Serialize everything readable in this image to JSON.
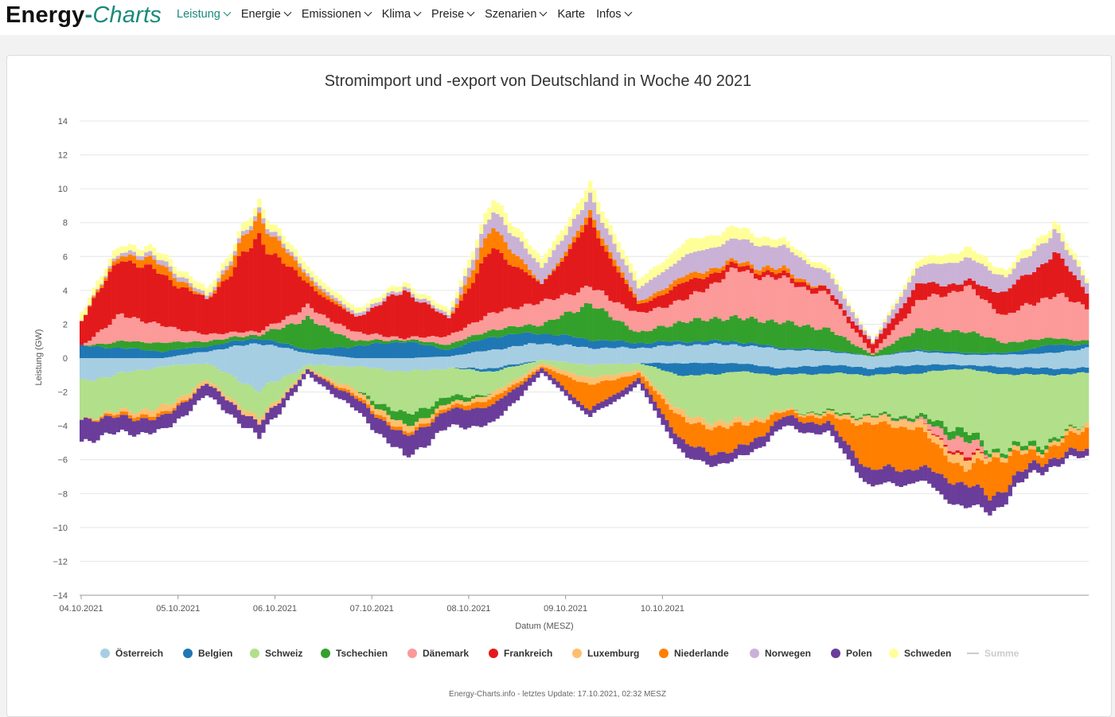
{
  "nav": {
    "brand_a": "Energy",
    "brand_dash": "-",
    "brand_b": "Charts",
    "items": [
      {
        "label": "Leistung",
        "active": true,
        "dropdown": true
      },
      {
        "label": "Energie",
        "active": false,
        "dropdown": true
      },
      {
        "label": "Emissionen",
        "active": false,
        "dropdown": true
      },
      {
        "label": "Klima",
        "active": false,
        "dropdown": true
      },
      {
        "label": "Preise",
        "active": false,
        "dropdown": true
      },
      {
        "label": "Szenarien",
        "active": false,
        "dropdown": true
      },
      {
        "label": "Karte",
        "active": false,
        "dropdown": false
      },
      {
        "label": "Infos",
        "active": false,
        "dropdown": true
      }
    ]
  },
  "footer": "Energy-Charts.info - letztes Update: 17.10.2021, 02:32 MESZ",
  "chart_data": {
    "type": "bar",
    "stacked": true,
    "title": "Stromimport und -export von Deutschland in Woche 40 2021",
    "xlabel": "Datum (MESZ)",
    "ylabel": "Leistung (GW)",
    "ylim": [
      -14,
      14
    ],
    "yticks": [
      14,
      12,
      10,
      8,
      6,
      4,
      2,
      0,
      -2,
      -4,
      -6,
      -8,
      -10,
      -12,
      -14
    ],
    "ytick_labels": [
      "14",
      "12",
      "10",
      "8",
      "6",
      "4",
      "2",
      "0",
      "−2",
      "−4",
      "−6",
      "−8",
      "−10",
      "−12",
      "−14"
    ],
    "xtick_labels": [
      "04.10.2021",
      "05.10.2021",
      "06.10.2021",
      "07.10.2021",
      "08.10.2021",
      "09.10.2021",
      "10.10.2021"
    ],
    "grid": true,
    "legend_position": "bottom",
    "hours_per_day": 24,
    "import_colors": [
      "#a6cee3",
      "#1f78b4",
      "#b2df8a",
      "#33a02c",
      "#fb9a99",
      "#e31a1c",
      "#fdbf6f",
      "#ff7f00",
      "#cab2d6",
      "#6a3d9a",
      "#ffff99"
    ],
    "series": [
      {
        "name": "Österreich",
        "color": "#a6cee3"
      },
      {
        "name": "Belgien",
        "color": "#1f78b4"
      },
      {
        "name": "Schweiz",
        "color": "#b2df8a"
      },
      {
        "name": "Tschechien",
        "color": "#33a02c"
      },
      {
        "name": "Dänemark",
        "color": "#fb9a99"
      },
      {
        "name": "Frankreich",
        "color": "#e31a1c"
      },
      {
        "name": "Luxemburg",
        "color": "#fdbf6f"
      },
      {
        "name": "Niederlande",
        "color": "#ff7f00"
      },
      {
        "name": "Norwegen",
        "color": "#cab2d6"
      },
      {
        "name": "Polen",
        "color": "#6a3d9a"
      },
      {
        "name": "Schweden",
        "color": "#ffff99"
      },
      {
        "name": "Summe",
        "color": "#cccccc",
        "inactive": true
      }
    ],
    "import_keyframes": [
      [
        0,
        [
          0,
          0.7,
          0,
          0,
          0,
          1.6,
          0,
          0,
          0,
          0,
          0.5
        ]
      ],
      [
        10,
        [
          0,
          0.6,
          0,
          0.4,
          1.6,
          3.4,
          0,
          0.3,
          0.2,
          0,
          0.4
        ]
      ],
      [
        20,
        [
          0,
          0.4,
          0,
          0.5,
          1.0,
          3.0,
          0,
          0.6,
          0.3,
          0,
          0.4
        ]
      ],
      [
        31,
        [
          0.4,
          0.3,
          0,
          0.3,
          0.4,
          2.0,
          0,
          0,
          0.2,
          0,
          0.4
        ]
      ],
      [
        44,
        [
          0.9,
          0.3,
          0,
          0.2,
          0.2,
          5.5,
          0,
          1.3,
          0.3,
          0,
          0.5
        ]
      ],
      [
        56,
        [
          0.3,
          0.2,
          0,
          1.8,
          0.7,
          1.3,
          0,
          0.4,
          0.2,
          0,
          0.4
        ]
      ],
      [
        68,
        [
          0,
          0.7,
          0,
          0.3,
          0.5,
          0.9,
          0,
          0,
          0.2,
          0,
          0.3
        ]
      ],
      [
        80,
        [
          0,
          1.0,
          0,
          0.1,
          0.1,
          2.8,
          0,
          0,
          0.2,
          0,
          0.3
        ]
      ],
      [
        91,
        [
          0.1,
          0.4,
          0,
          0.3,
          0.5,
          1.0,
          0,
          0,
          0.2,
          0,
          0.3
        ]
      ],
      [
        102,
        [
          0.5,
          0.8,
          0,
          0.4,
          1.0,
          3.8,
          0,
          1.3,
          1.0,
          0,
          0.7
        ]
      ],
      [
        114,
        [
          0.9,
          0.6,
          0,
          0.5,
          1.3,
          1.0,
          0,
          0,
          1.0,
          0,
          0.5
        ]
      ],
      [
        126,
        [
          0.6,
          0.5,
          0,
          2.1,
          1.0,
          3.8,
          0,
          0.5,
          1.0,
          0,
          0.7
        ]
      ],
      [
        138,
        [
          0.6,
          0.3,
          0,
          0.6,
          1.1,
          0.5,
          0,
          0.2,
          0.8,
          0,
          0.5
        ]
      ],
      [
        150,
        [
          0.8,
          0.2,
          0,
          1.2,
          1.3,
          1.0,
          0,
          0.4,
          1.2,
          0,
          0.8
        ]
      ],
      [
        162,
        [
          0.8,
          0.2,
          0,
          1.4,
          2.8,
          0.3,
          0,
          0.2,
          1.3,
          0,
          0.7
        ]
      ],
      [
        174,
        [
          0.5,
          0.1,
          0,
          1.5,
          2.5,
          0.3,
          0,
          0.3,
          1.3,
          0,
          0.4
        ]
      ],
      [
        185,
        [
          0.4,
          0.1,
          0,
          1.2,
          2.0,
          0.3,
          0,
          0,
          1.0,
          0,
          0.3
        ]
      ],
      [
        196,
        [
          0.1,
          0,
          0,
          0.1,
          0.1,
          0.5,
          0,
          0,
          0.1,
          0,
          0.1
        ]
      ],
      [
        207,
        [
          0.4,
          0.1,
          0,
          1.2,
          1.6,
          1.0,
          0,
          0,
          1.0,
          0,
          0.4
        ]
      ],
      [
        219,
        [
          0.2,
          0.1,
          0,
          1.3,
          2.6,
          0.3,
          0,
          0,
          1.4,
          0,
          0.6
        ]
      ],
      [
        229,
        [
          0.2,
          0.1,
          0,
          0.6,
          1.6,
          1.4,
          0,
          0,
          0.9,
          0,
          0.4
        ]
      ],
      [
        241,
        [
          0.3,
          0.5,
          0,
          0.4,
          2.6,
          2.4,
          0,
          0,
          1.3,
          0,
          0.5
        ]
      ],
      [
        249,
        [
          0.6,
          0.2,
          0,
          0.2,
          2.0,
          1.0,
          0,
          0,
          0.6,
          0,
          0.3
        ]
      ]
    ],
    "export_keyframes": [
      [
        0,
        [
          1.4,
          0,
          2.2,
          0,
          0,
          0,
          0,
          0,
          0,
          1.3,
          0
        ]
      ],
      [
        10,
        [
          0.9,
          0,
          2.2,
          0,
          0,
          0,
          0.2,
          0.2,
          0,
          0.9,
          0
        ]
      ],
      [
        20,
        [
          0.5,
          0,
          2.5,
          0,
          0,
          0,
          0.4,
          0.2,
          0,
          0.8,
          0
        ]
      ],
      [
        31,
        [
          0.3,
          0,
          1.0,
          0,
          0,
          0,
          0.2,
          0,
          0,
          0.7,
          0
        ]
      ],
      [
        44,
        [
          1.9,
          0,
          1.7,
          0,
          0,
          0,
          0.3,
          0,
          0,
          0.8,
          0
        ]
      ],
      [
        56,
        [
          0.4,
          0,
          0.2,
          0,
          0,
          0,
          0.1,
          0,
          0,
          0.3,
          0
        ]
      ],
      [
        68,
        [
          0.5,
          0,
          1.4,
          0,
          0,
          0,
          0.3,
          0.2,
          0,
          0.7,
          0
        ]
      ],
      [
        80,
        [
          0.8,
          0,
          2.6,
          0.7,
          0,
          0,
          0.4,
          0.2,
          0,
          1.2,
          0
        ]
      ],
      [
        91,
        [
          0.6,
          0,
          1.7,
          0.4,
          0,
          0,
          0.2,
          0.2,
          0,
          1.0,
          0
        ]
      ],
      [
        102,
        [
          0.6,
          0.2,
          1.3,
          0,
          0,
          0,
          0.3,
          0.4,
          0,
          1.1,
          0
        ]
      ],
      [
        114,
        [
          0.1,
          0,
          0.2,
          0,
          0,
          0,
          0.2,
          0.1,
          0,
          0.3,
          0
        ]
      ],
      [
        126,
        [
          0.4,
          0,
          0.8,
          0,
          0,
          0,
          0.4,
          1.5,
          0,
          0.4,
          0
        ]
      ],
      [
        138,
        [
          0.3,
          0,
          0.4,
          0,
          0,
          0,
          0.2,
          0.3,
          0,
          0.4,
          0
        ]
      ],
      [
        150,
        [
          0.3,
          0.8,
          2.4,
          0,
          0,
          0,
          0.4,
          1.4,
          0,
          0.8,
          0
        ]
      ],
      [
        162,
        [
          0.3,
          0.5,
          3.0,
          0,
          0,
          0,
          0.3,
          1.5,
          0,
          0.6,
          0
        ]
      ],
      [
        174,
        [
          0.6,
          0.4,
          2.1,
          0,
          0,
          0,
          0.1,
          0.3,
          0,
          0.6,
          0
        ]
      ],
      [
        185,
        [
          0.4,
          0.5,
          2.3,
          0.1,
          0,
          0,
          0.2,
          0.4,
          0,
          0.6,
          0
        ]
      ],
      [
        196,
        [
          0.6,
          0.4,
          2.4,
          0.1,
          0,
          0,
          0.4,
          2.8,
          0,
          1.0,
          0
        ]
      ],
      [
        207,
        [
          0.4,
          0.5,
          2.5,
          0.2,
          0.1,
          0,
          0.4,
          2.3,
          0,
          0.8,
          0
        ]
      ],
      [
        219,
        [
          0.4,
          0.2,
          3.7,
          0.6,
          1.0,
          0.2,
          0.6,
          0.8,
          0,
          1.4,
          0
        ]
      ],
      [
        225,
        [
          0.5,
          0.4,
          4.5,
          0.2,
          0,
          0,
          0.3,
          2.3,
          0,
          0.9,
          0
        ]
      ],
      [
        237,
        [
          0.6,
          0.4,
          4.1,
          0.3,
          0,
          0,
          0.2,
          0.5,
          0,
          0.5,
          0
        ]
      ],
      [
        249,
        [
          0.6,
          0.3,
          3.0,
          0,
          0,
          0,
          0.3,
          1.2,
          0,
          0.4,
          0
        ]
      ]
    ]
  }
}
